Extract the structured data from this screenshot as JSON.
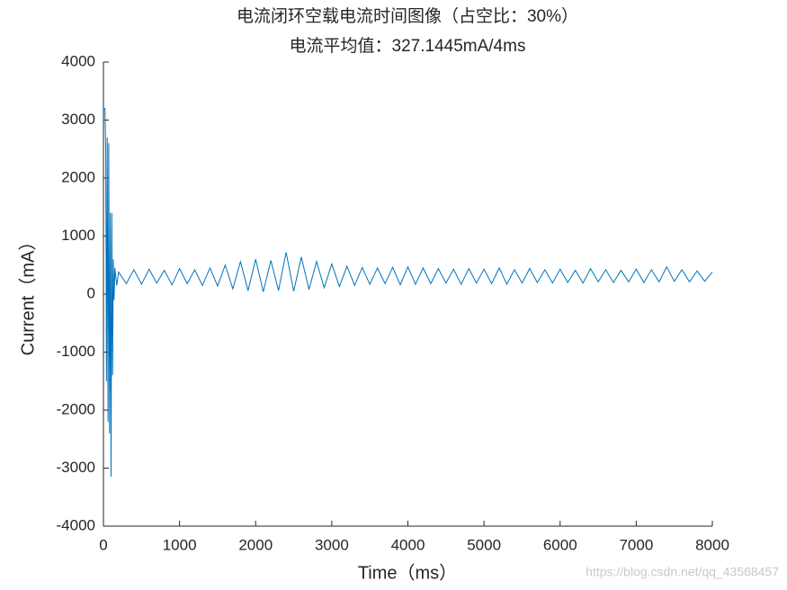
{
  "chart_data": {
    "type": "line",
    "title": "电流闭环空载电流时间图像（占空比：30%）",
    "subtitle": "电流平均值：327.1445mA/4ms",
    "x_label": "Time（ms）",
    "y_label": "Current（mA）",
    "watermark": "https://blog.csdn.net/qq_43568457",
    "color": "#0072bd",
    "xlim": [
      0,
      8000
    ],
    "xticks": [
      0,
      1000,
      2000,
      3000,
      4000,
      5000,
      6000,
      7000,
      8000
    ],
    "ylim": [
      -4000,
      4000
    ],
    "yticks": [
      -4000,
      -3000,
      -2000,
      -1000,
      0,
      1000,
      2000,
      3000,
      4000
    ],
    "x": [
      0,
      10,
      20,
      30,
      40,
      50,
      60,
      70,
      80,
      90,
      100,
      110,
      120,
      130,
      140,
      150,
      175,
      200,
      300,
      400,
      500,
      600,
      700,
      800,
      900,
      1000,
      1100,
      1200,
      1300,
      1400,
      1500,
      1600,
      1700,
      1800,
      1900,
      2000,
      2100,
      2200,
      2300,
      2400,
      2500,
      2600,
      2700,
      2800,
      2900,
      3000,
      3100,
      3200,
      3300,
      3400,
      3500,
      3600,
      3700,
      3800,
      3900,
      4000,
      4100,
      4200,
      4300,
      4400,
      4500,
      4600,
      4700,
      4800,
      4900,
      5000,
      5100,
      5200,
      5300,
      5400,
      5500,
      5600,
      5700,
      5800,
      5900,
      6000,
      6100,
      6200,
      6300,
      6400,
      6500,
      6600,
      6700,
      6800,
      6900,
      7000,
      7100,
      7200,
      7300,
      7400,
      7500,
      7600,
      7700,
      7800,
      7900,
      8000
    ],
    "values": [
      3200,
      3200,
      3200,
      2500,
      -1500,
      2700,
      -2200,
      2600,
      -2400,
      1400,
      -3150,
      1400,
      -1400,
      600,
      -100,
      450,
      150,
      380,
      180,
      420,
      170,
      430,
      190,
      410,
      160,
      440,
      180,
      420,
      150,
      450,
      140,
      500,
      90,
      560,
      60,
      600,
      40,
      580,
      60,
      720,
      50,
      640,
      80,
      560,
      110,
      520,
      130,
      480,
      150,
      460,
      170,
      450,
      180,
      460,
      160,
      470,
      170,
      450,
      180,
      440,
      190,
      430,
      170,
      440,
      190,
      430,
      180,
      450,
      170,
      420,
      190,
      440,
      200,
      420,
      190,
      430,
      200,
      410,
      190,
      440,
      210,
      420,
      200,
      410,
      210,
      430,
      200,
      420,
      210,
      470,
      220,
      420,
      210,
      400,
      220,
      380
    ]
  }
}
